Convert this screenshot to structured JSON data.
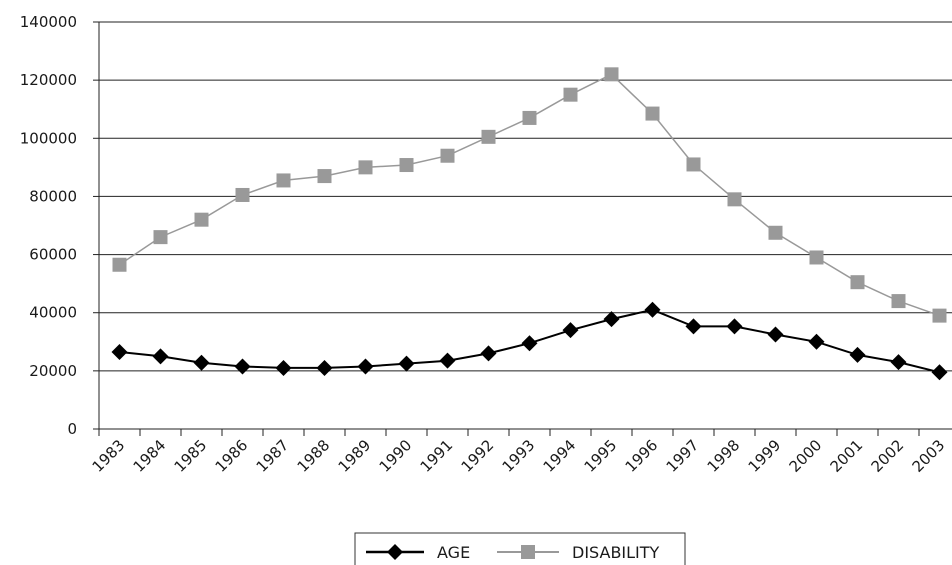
{
  "chart_data": {
    "type": "line",
    "title": "",
    "xlabel": "",
    "ylabel": "",
    "categories": [
      "1983",
      "1984",
      "1985",
      "1986",
      "1987",
      "1988",
      "1989",
      "1990",
      "1991",
      "1992",
      "1993",
      "1994",
      "1995",
      "1996",
      "1997",
      "1998",
      "1999",
      "2000",
      "2001",
      "2002",
      "2003"
    ],
    "y_ticks": [
      "0",
      "20000",
      "40000",
      "60000",
      "80000",
      "100000",
      "120000",
      "140000"
    ],
    "ylim": [
      0,
      140000
    ],
    "grid": "horizontal",
    "legend_position": "bottom-center",
    "series": [
      {
        "name": "AGE",
        "color": "#000000",
        "marker": "diamond",
        "values": [
          26500,
          25000,
          22800,
          21500,
          21000,
          21000,
          21500,
          22500,
          23500,
          26000,
          29500,
          34000,
          37800,
          41000,
          35300,
          35300,
          32500,
          30000,
          25500,
          23000,
          19500
        ]
      },
      {
        "name": "DISABILITY",
        "color": "#999999",
        "marker": "square",
        "values": [
          56500,
          66000,
          72000,
          80500,
          85500,
          87000,
          90000,
          90800,
          94000,
          100500,
          107000,
          115000,
          122000,
          108500,
          91000,
          79000,
          67500,
          59000,
          50500,
          44000,
          39000
        ]
      }
    ]
  }
}
